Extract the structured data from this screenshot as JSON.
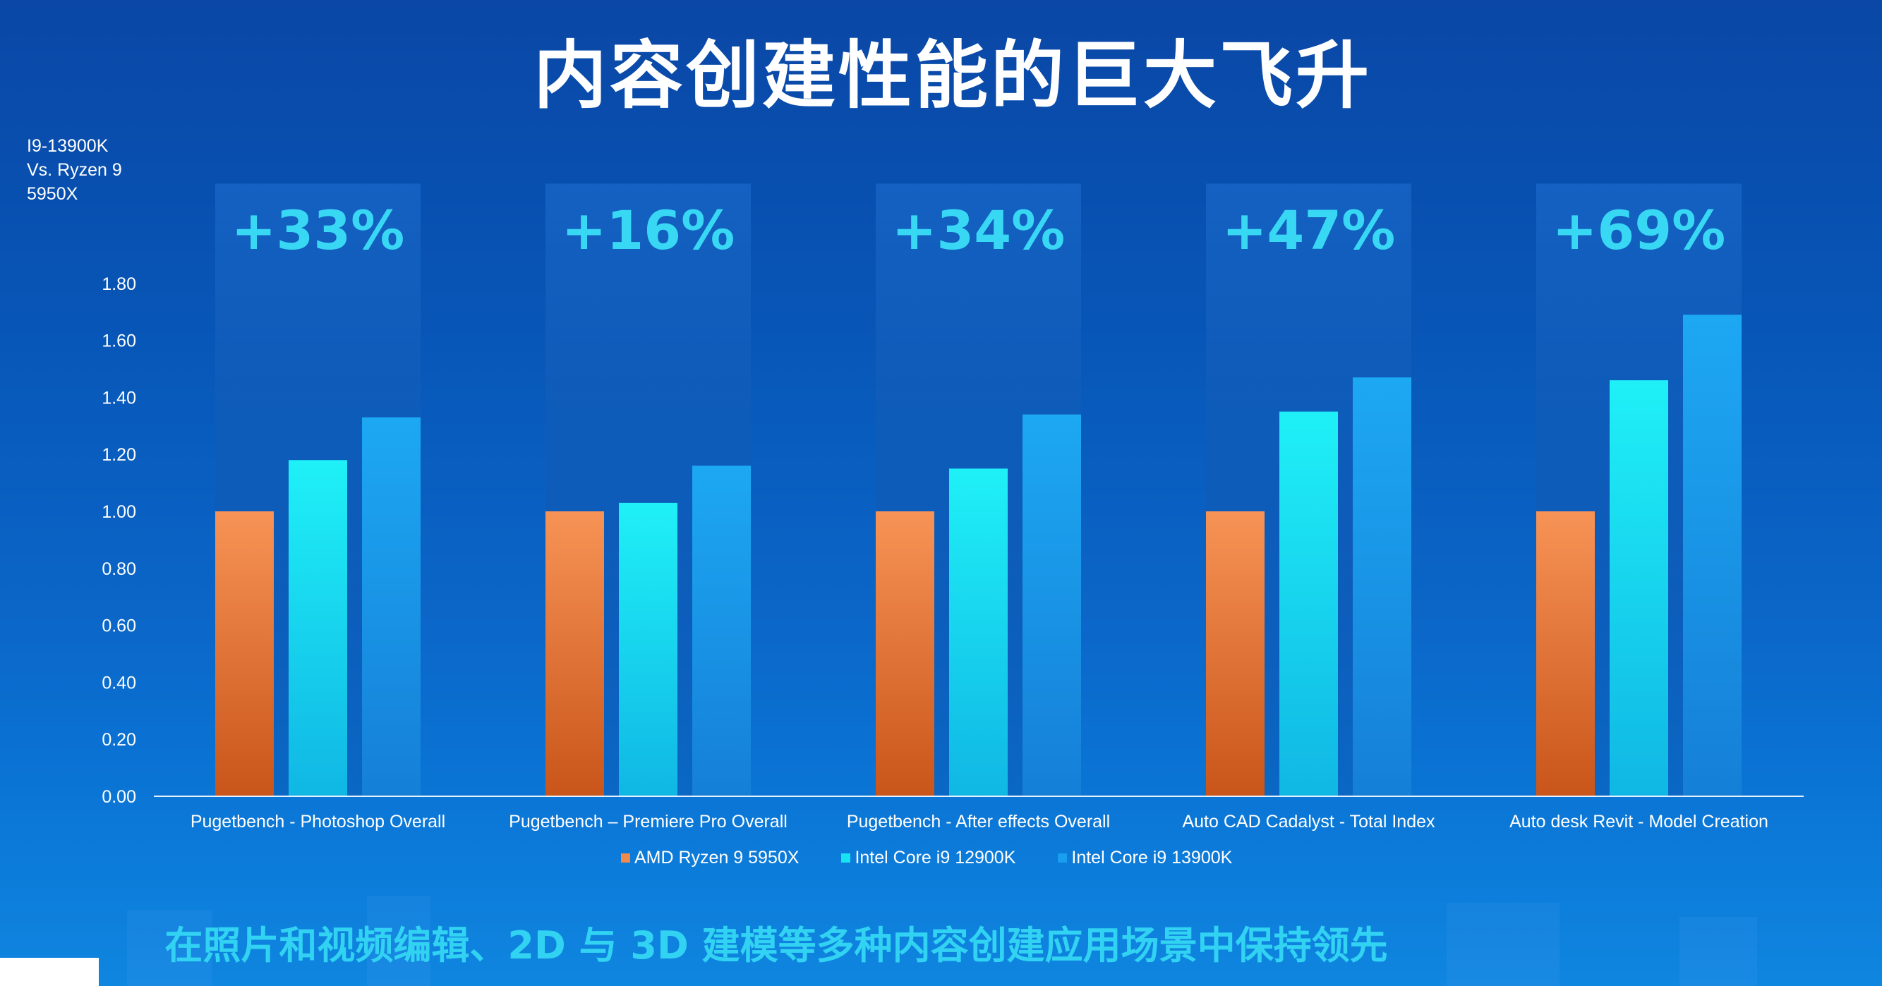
{
  "slide": {
    "title": "内容创建性能的巨大飞升",
    "y_axis_title": [
      "I9-13900K",
      "Vs. Ryzen 9",
      "5950X"
    ],
    "bottom_caption": "在照片和视频编辑、2D 与 3D 建模等多种内容创建应用场景中保持领先"
  },
  "colors": {
    "amd": "#f08a4b",
    "intel_12900k": "#17e3f2",
    "intel_13900k": "#1a9ef0",
    "gain_text": "#38d8f5",
    "highlight": "#0f57b8"
  },
  "chart_data": {
    "type": "bar",
    "categories": [
      "Pugetbench - Photoshop Overall",
      "Pugetbench – Premiere Pro Overall",
      "Pugetbench - After effects Overall",
      "Auto CAD Cadalyst - Total Index",
      "Auto desk Revit - Model Creation"
    ],
    "series": [
      {
        "name": "AMD Ryzen 9 5950X",
        "values": [
          1.0,
          1.0,
          1.0,
          1.0,
          1.0
        ]
      },
      {
        "name": "Intel Core i9 12900K",
        "values": [
          1.18,
          1.03,
          1.15,
          1.35,
          1.46
        ]
      },
      {
        "name": "Intel Core i9 13900K",
        "values": [
          1.33,
          1.16,
          1.34,
          1.47,
          1.69
        ]
      }
    ],
    "annotations": [
      "+33%",
      "+16%",
      "+34%",
      "+47%",
      "+69%"
    ],
    "yticks": [
      "0.00",
      "0.20",
      "0.40",
      "0.60",
      "0.80",
      "1.00",
      "1.20",
      "1.40",
      "1.60",
      "1.80"
    ],
    "ylim": [
      0,
      2.15
    ],
    "grid": false,
    "legend": "bottom"
  }
}
